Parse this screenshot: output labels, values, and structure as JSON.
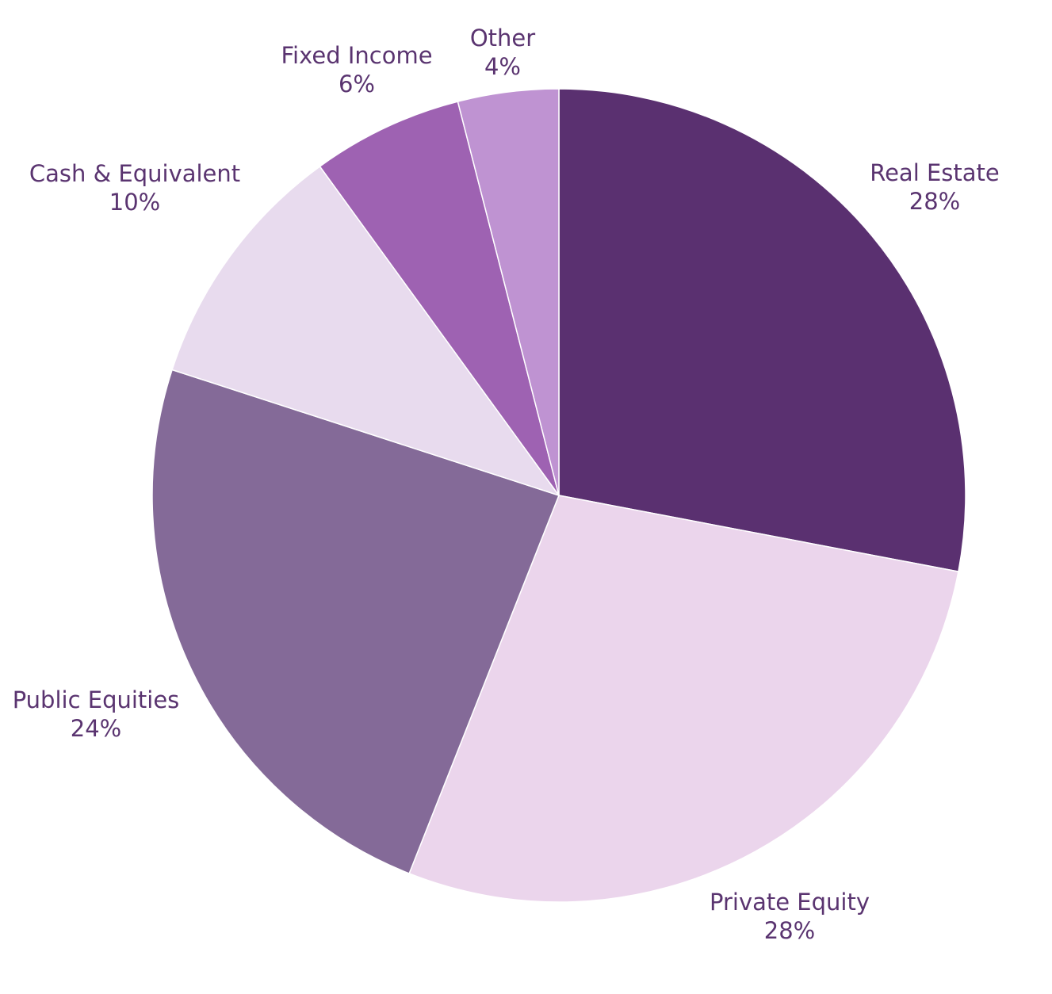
{
  "chart_data": {
    "type": "pie",
    "title": "",
    "start": "12 o'clock",
    "direction": "clockwise",
    "slices": [
      {
        "name": "Real Estate",
        "value": 28,
        "label": "28%",
        "color": "#5a3070"
      },
      {
        "name": "Private Equity",
        "value": 28,
        "label": "28%",
        "color": "#ebd5ec"
      },
      {
        "name": "Public Equities",
        "value": 24,
        "label": "24%",
        "color": "#846a98"
      },
      {
        "name": "Cash & Equivalent",
        "value": 10,
        "label": "10%",
        "color": "#e8dbee"
      },
      {
        "name": "Fixed Income",
        "value": 6,
        "label": "6%",
        "color": "#9e62b2"
      },
      {
        "name": "Other",
        "value": 4,
        "label": "4%",
        "color": "#bf93d2"
      }
    ]
  }
}
